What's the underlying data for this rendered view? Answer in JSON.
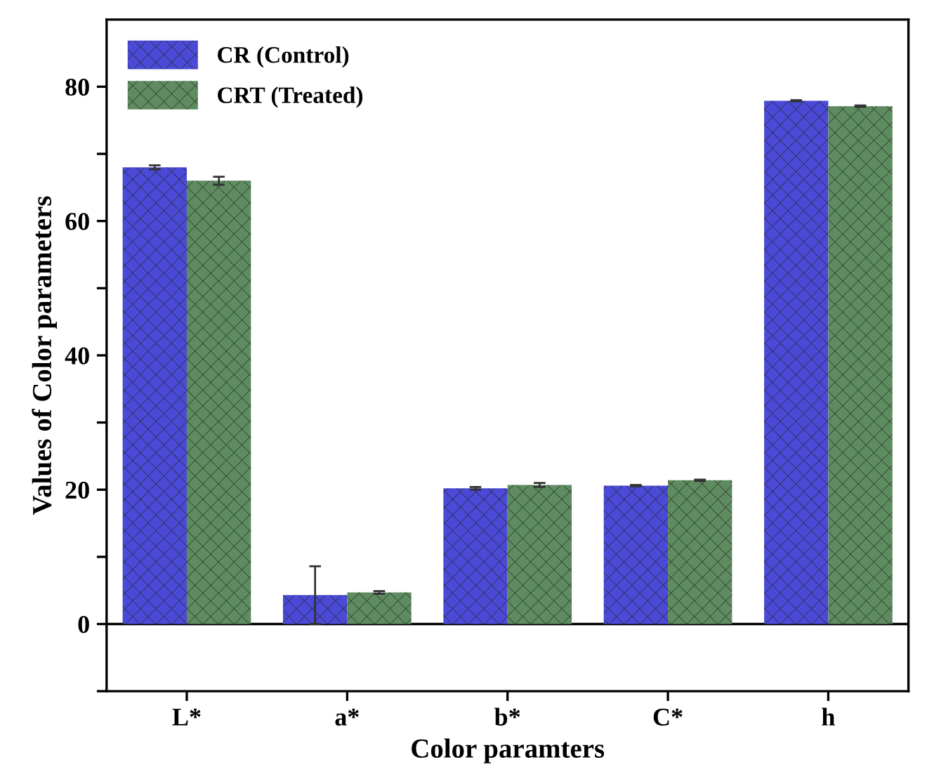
{
  "chart_data": {
    "type": "bar",
    "xlabel": "Color paramters",
    "ylabel": "Values of Color parameters",
    "categories": [
      "L*",
      "a*",
      "b*",
      "C*",
      "h"
    ],
    "series": [
      {
        "name": "CR (Control)",
        "color": "#4a4ad6",
        "values": [
          68.0,
          4.3,
          20.2,
          20.6,
          77.9
        ],
        "errors": [
          0.3,
          4.3,
          0.2,
          0.1,
          0.1
        ]
      },
      {
        "name": "CRT (Treated)",
        "color": "#5e8c60",
        "values": [
          66.0,
          4.7,
          20.7,
          21.4,
          77.1
        ],
        "errors": [
          0.6,
          0.2,
          0.3,
          0.1,
          0.1
        ]
      }
    ],
    "ylim": [
      -10,
      90
    ],
    "yticks": [
      0,
      20,
      40,
      60,
      80,
      {
        "value": -10,
        "label": null
      },
      {
        "value": 10,
        "label": null
      },
      {
        "value": 30,
        "label": null
      },
      {
        "value": 50,
        "label": null
      },
      {
        "value": 70,
        "label": null
      }
    ],
    "ref_lines": [
      {
        "axis": "y",
        "value": 0,
        "color": "#000000"
      }
    ],
    "grid": false,
    "legend": "top left"
  }
}
